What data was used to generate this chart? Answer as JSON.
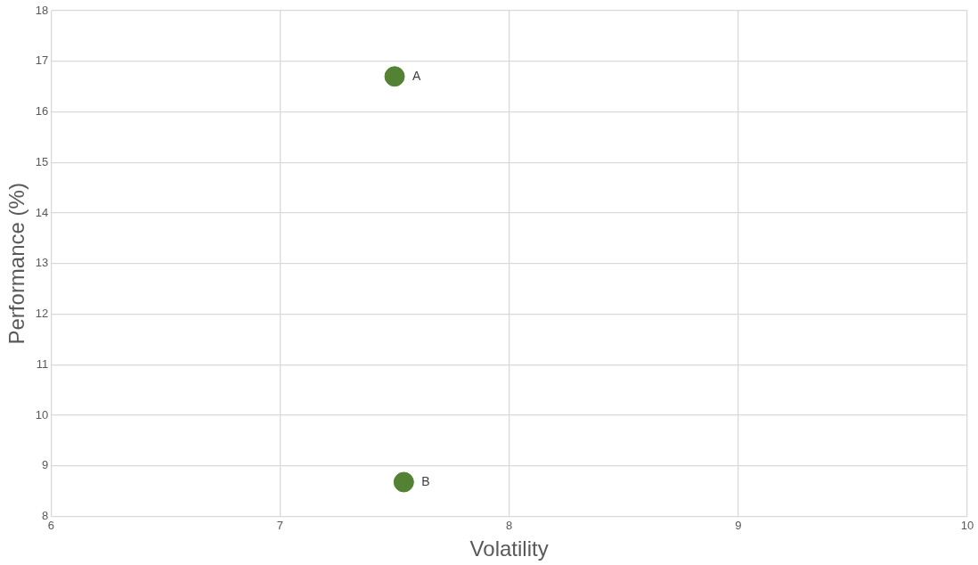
{
  "chart_data": {
    "type": "scatter",
    "xlabel": "Volatility",
    "ylabel": "Performance (%)",
    "xlim": [
      6,
      10
    ],
    "xticks": [
      6,
      7,
      8,
      9,
      10
    ],
    "ylim": [
      8,
      18
    ],
    "yticks": [
      8,
      9,
      10,
      11,
      12,
      13,
      14,
      15,
      16,
      17,
      18
    ],
    "grid": true,
    "legend": false,
    "marker": "circle",
    "series": [
      {
        "name": "A",
        "color": "#548235",
        "x": [
          7.5
        ],
        "values": [
          16.7
        ]
      },
      {
        "name": "B",
        "color": "#548235",
        "x": [
          7.54
        ],
        "values": [
          8.68
        ]
      }
    ]
  }
}
